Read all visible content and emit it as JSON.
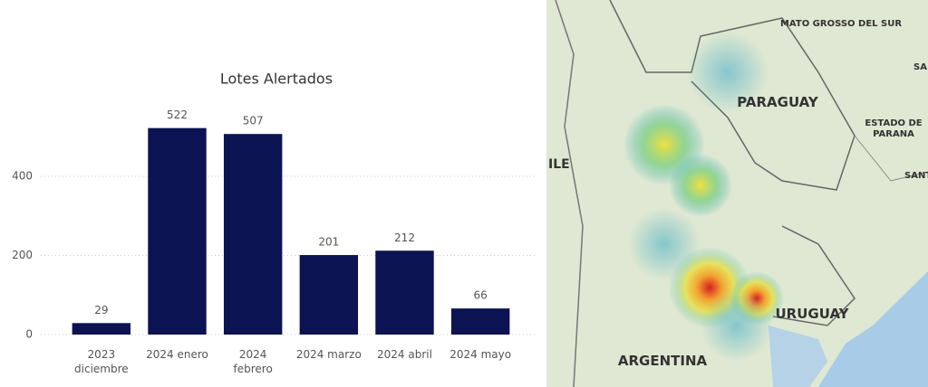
{
  "chart_data": {
    "type": "bar",
    "title": "Lotes Alertados",
    "categories": [
      "2023 diciembre",
      "2024 enero",
      "2024 febrero",
      "2024 marzo",
      "2024 abril",
      "2024 mayo"
    ],
    "values": [
      29,
      522,
      507,
      201,
      212,
      66
    ],
    "color": "#0c1352",
    "ylim": [
      0,
      560
    ],
    "yticks": [
      0,
      200,
      400
    ],
    "grid": true
  },
  "map": {
    "labels": [
      "PARAGUAY",
      "URUGUAY",
      "ARGENTINA",
      "ILE",
      "MATO GROSSO DEL SUR",
      "ESTADO DE",
      "PARANA",
      "SANTA CA",
      "SA"
    ]
  }
}
